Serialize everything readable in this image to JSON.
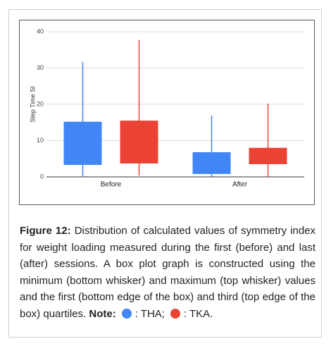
{
  "chart_data": {
    "type": "box",
    "ylabel": "Step Time SI",
    "categories": [
      "Before",
      "After"
    ],
    "ylim": [
      0,
      40
    ],
    "yticks": [
      0,
      10,
      20,
      30,
      40
    ],
    "grid": true,
    "series": [
      {
        "name": ": THA;",
        "color": "#4285f4",
        "min": [
          0,
          0
        ],
        "q1": [
          3.3,
          0.8
        ],
        "q3": [
          15.2,
          6.8
        ],
        "max": [
          31.7,
          16.9
        ]
      },
      {
        "name": ": TKA.",
        "color": "#ea4335",
        "min": [
          0.4,
          0
        ],
        "q1": [
          3.7,
          3.5
        ],
        "q3": [
          15.5,
          8.0
        ],
        "max": [
          37.7,
          20.2
        ]
      }
    ]
  },
  "caption": {
    "label": "Figure 12:",
    "text": "Distribution of calculated values of symmetry index for weight loading measured during the first (before) and last (after) sessions. A box plot graph is constructed using the minimum (bottom whisker) and maximum (top whisker) values and the first (bottom edge of the box) and third (top edge of the box) quartiles.",
    "note": "Note:"
  }
}
